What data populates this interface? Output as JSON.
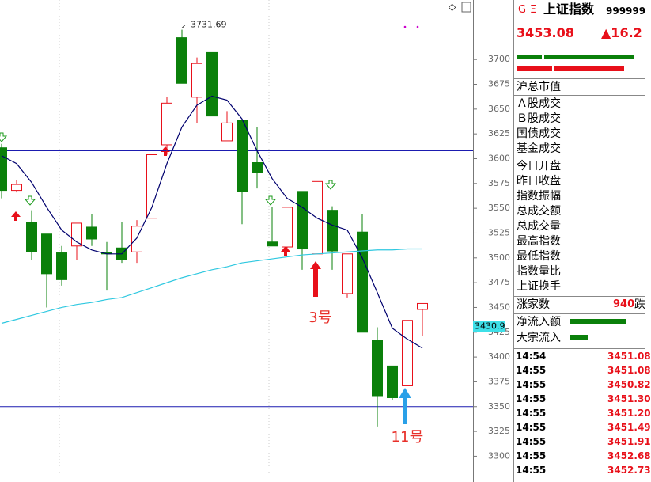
{
  "chart_data": {
    "type": "candlestick",
    "open": [
      3611,
      3568,
      3536,
      3524,
      3505,
      3512,
      3531,
      3505,
      3510,
      3506,
      3540,
      3614,
      3722,
      3662,
      3707,
      3618,
      3639,
      3596,
      3516,
      3511,
      3567,
      3504,
      3548,
      3464,
      3526,
      3417,
      3391,
      3371,
      3448
    ],
    "high": [
      3615,
      3578,
      3548,
      3524,
      3512,
      3535,
      3544,
      3516,
      3536,
      3538,
      3604,
      3662,
      3730,
      3702,
      3707,
      3648,
      3639,
      3632,
      3551,
      3551,
      3567,
      3577,
      3552,
      3504,
      3544,
      3430,
      3391,
      3437,
      3454
    ],
    "low": [
      3560,
      3566,
      3498,
      3450,
      3472,
      3498,
      3512,
      3467,
      3495,
      3495,
      3540,
      3604,
      3676,
      3636,
      3643,
      3618,
      3534,
      3570,
      3512,
      3506,
      3488,
      3504,
      3488,
      3460,
      3425,
      3330,
      3357,
      3371,
      3421
    ],
    "close": [
      3568,
      3574,
      3506,
      3484,
      3478,
      3535,
      3519,
      3504,
      3498,
      3532,
      3604,
      3656,
      3676,
      3696,
      3643,
      3636,
      3567,
      3586,
      3512,
      3551,
      3509,
      3577,
      3507,
      3504,
      3425,
      3361,
      3359,
      3437,
      3454
    ],
    "up_color": "#e8101a",
    "down_color": "#0a800a",
    "lines": [
      {
        "color": "#00006e",
        "values": [
          3603,
          3595,
          3576,
          3551,
          3528,
          3516,
          3508,
          3504,
          3504,
          3520,
          3551,
          3595,
          3632,
          3654,
          3663,
          3659,
          3640,
          3608,
          3580,
          3560,
          3551,
          3540,
          3533,
          3528,
          3500,
          3465,
          3429,
          3418,
          3409
        ]
      },
      {
        "color": "#2fc8e0",
        "values": [
          3434,
          3438,
          3442,
          3446,
          3450,
          3453,
          3455,
          3458,
          3460,
          3465,
          3470,
          3475,
          3480,
          3484,
          3488,
          3491,
          3495,
          3497,
          3499,
          3501,
          3503,
          3504,
          3505,
          3506,
          3507,
          3508,
          3508,
          3509,
          3509
        ]
      }
    ],
    "hlines": [
      3608,
      3350
    ],
    "hline_color": "#1b1bb0",
    "ylim": [
      3274,
      3760
    ],
    "yticks": [
      3300,
      3325,
      3350,
      3375,
      3400,
      3425,
      3450,
      3475,
      3500,
      3525,
      3550,
      3575,
      3600,
      3625,
      3650,
      3675,
      3700
    ],
    "high_annotation": {
      "text": "3731.69",
      "value": 3731.69
    },
    "annotations": [
      "3号",
      "11号"
    ],
    "cursor_label": {
      "value": 3430.9,
      "label": "3430.9"
    }
  },
  "panel": {
    "header": {
      "g": "G",
      "menu": "Ξ",
      "name": "上证指数",
      "code": "999999"
    },
    "price": "3453.08",
    "change": "▲16.2",
    "market_cap": "沪总市值",
    "volume_labels": [
      "Ａ股成交",
      "Ｂ股成交",
      "国债成交",
      "基金成交"
    ],
    "stats_labels": [
      "今日开盘",
      "昨日收盘",
      "指数振幅",
      "总成交额",
      "总成交量",
      "最高指数",
      "最低指数",
      "指数量比",
      "上证换手"
    ],
    "advancers_label": "涨家数",
    "advancers": "940",
    "decliners_label": "跌",
    "flow_labels": [
      "净流入额",
      "大宗流入"
    ],
    "ticks": [
      {
        "time": "14:54",
        "price": "3451.08"
      },
      {
        "time": "14:55",
        "price": "3451.08"
      },
      {
        "time": "14:55",
        "price": "3450.82"
      },
      {
        "time": "14:55",
        "price": "3451.30"
      },
      {
        "time": "14:55",
        "price": "3451.20"
      },
      {
        "time": "14:55",
        "price": "3451.49"
      },
      {
        "time": "14:55",
        "price": "3451.91"
      },
      {
        "time": "14:55",
        "price": "3452.68"
      },
      {
        "time": "14:55",
        "price": "3452.73"
      }
    ]
  }
}
